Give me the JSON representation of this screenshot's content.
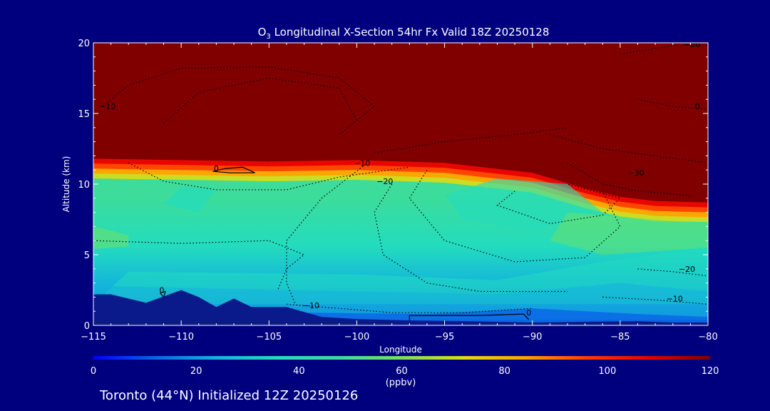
{
  "chart_data": {
    "type": "heatmap",
    "title_prefix": "O",
    "title_sub": "3",
    "title_rest": " Longitudinal X-Section 54hr  Fx Valid 18Z 20250128",
    "xlabel": "Longitude",
    "ylabel": "Altitude (km)",
    "xlim": [
      -115,
      -80
    ],
    "ylim": [
      0,
      20
    ],
    "xticks": [
      -115,
      -110,
      -105,
      -100,
      -95,
      -90,
      -85,
      -80
    ],
    "xtick_labels": [
      "−115",
      "−110",
      "−105",
      "−100",
      "−95",
      "−90",
      "−85",
      "−80"
    ],
    "yticks": [
      0,
      5,
      10,
      15,
      20
    ],
    "ytick_labels": [
      "0",
      "5",
      "10",
      "15",
      "20"
    ],
    "colorbar": {
      "label": "(ppbv)",
      "min": 0,
      "max": 120,
      "ticks": [
        0,
        20,
        40,
        60,
        80,
        100,
        120
      ],
      "tick_labels": [
        "0",
        "20",
        "40",
        "60",
        "80",
        "100",
        "120"
      ],
      "colors": [
        "#0000ff",
        "#0a64e6",
        "#14b4dc",
        "#23dcbe",
        "#3cdc9b",
        "#78e05a",
        "#dcdc14",
        "#ffa000",
        "#ff3c00",
        "#e60000",
        "#800000"
      ]
    },
    "tropopause_km": {
      "lon": [
        -115,
        -110,
        -105,
        -100,
        -95,
        -90,
        -87,
        -85,
        -83,
        -80
      ],
      "alt": [
        11.8,
        11.7,
        11.6,
        11.7,
        11.5,
        10.8,
        9.7,
        9.1,
        8.8,
        8.7
      ]
    },
    "terrain_km": {
      "lon": [
        -115,
        -114,
        -112,
        -110,
        -109,
        -108,
        -107,
        -106,
        -104,
        -102,
        -100,
        -97,
        -94,
        -90,
        -87,
        -84,
        -82,
        -80
      ],
      "alt": [
        2.2,
        2.2,
        1.6,
        2.5,
        2.0,
        1.3,
        1.9,
        1.3,
        1.3,
        0.6,
        0.45,
        0.35,
        0.3,
        0.2,
        0.25,
        0.3,
        0.2,
        0.2
      ]
    },
    "contour_labels": [
      {
        "text": "−10",
        "lon": -114.2,
        "alt": 15.3
      },
      {
        "text": "0",
        "lon": -108,
        "alt": 10.9
      },
      {
        "text": "−10",
        "lon": -99.7,
        "alt": 11.3
      },
      {
        "text": "−20",
        "lon": -98.4,
        "alt": 10.0
      },
      {
        "text": "−30",
        "lon": -84.1,
        "alt": 10.6
      },
      {
        "text": "−20",
        "lon": -80.9,
        "alt": 19.7
      },
      {
        "text": "0",
        "lon": -80.6,
        "alt": 15.3
      },
      {
        "text": "−20",
        "lon": -81.2,
        "alt": 3.8
      },
      {
        "text": "−10",
        "lon": -81.9,
        "alt": 1.7
      },
      {
        "text": "−10",
        "lon": -102.6,
        "alt": 1.2
      },
      {
        "text": "0",
        "lon": -90.2,
        "alt": 0.7
      },
      {
        "text": "0",
        "lon": -111.1,
        "alt": 2.3
      }
    ]
  },
  "footer": {
    "text": "Toronto (44°N) Initialized 12Z 20250126"
  }
}
